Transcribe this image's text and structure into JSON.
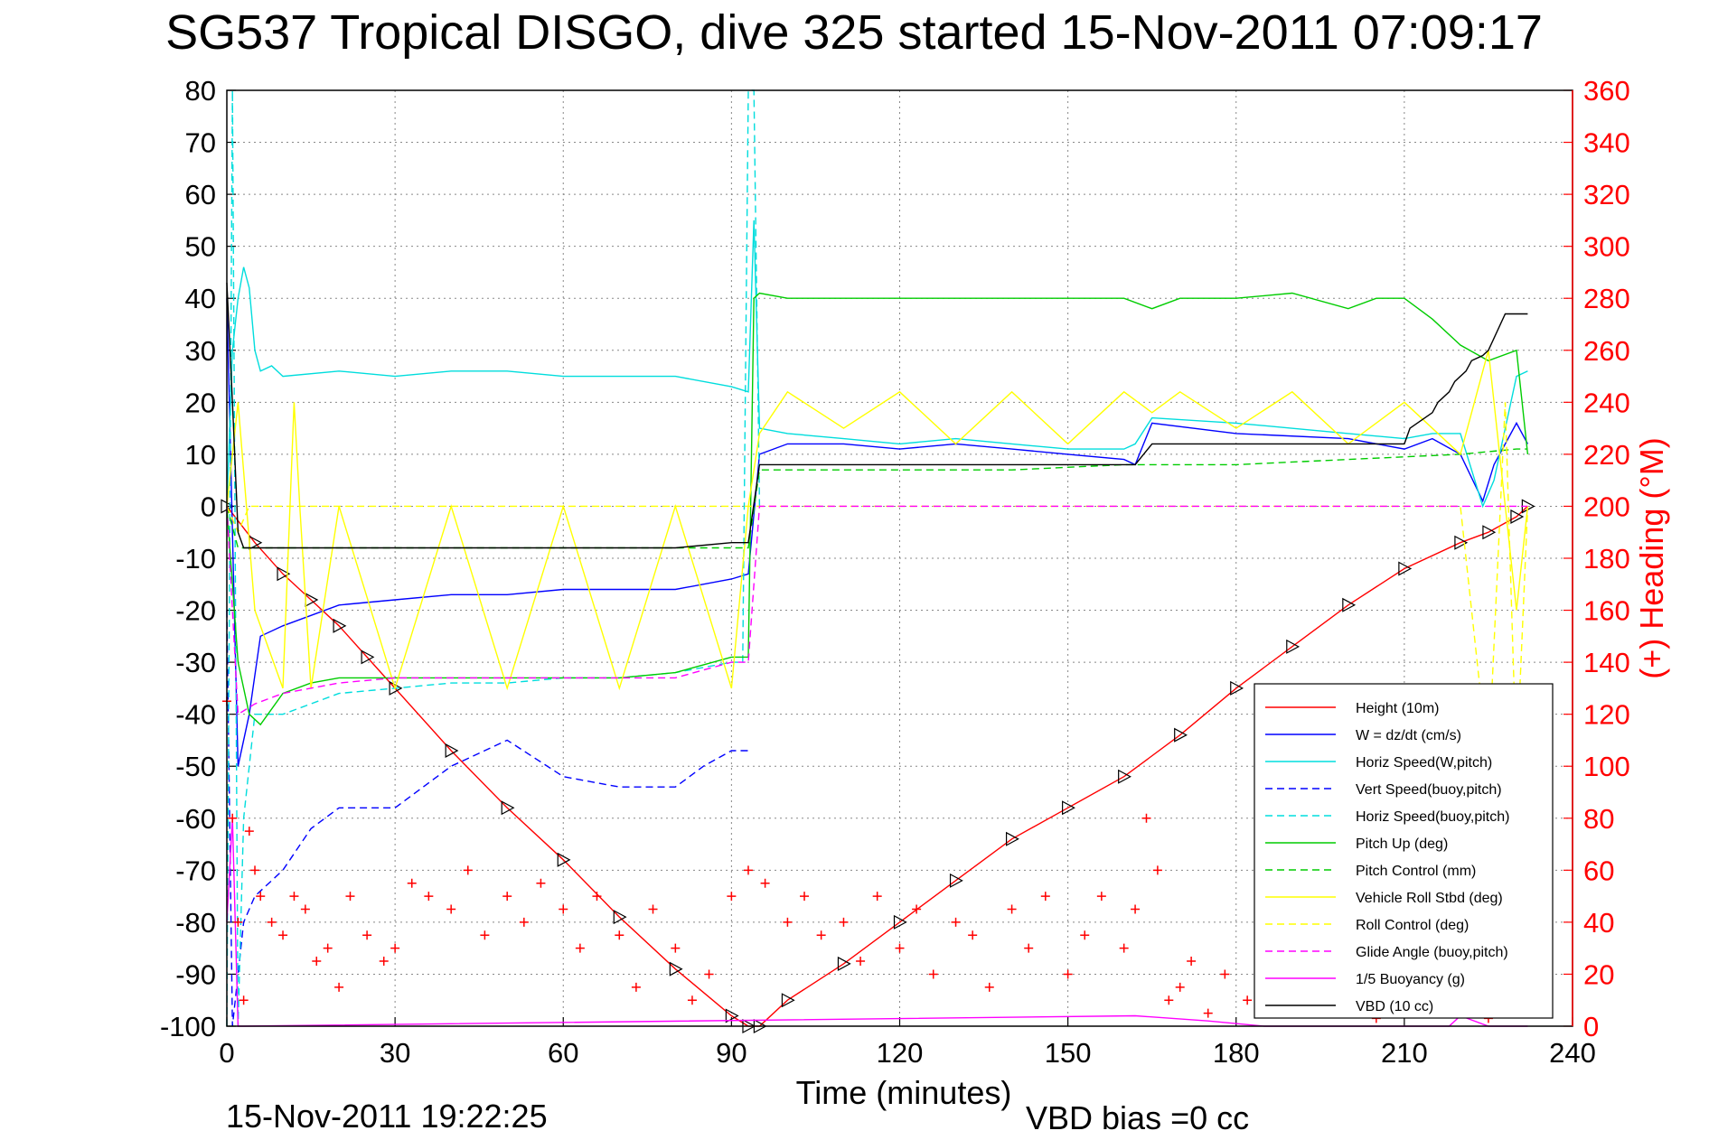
{
  "chart_data": {
    "type": "line",
    "title": "SG537 Tropical DISGO, dive 325 started 15-Nov-2011 07:09:17",
    "xlabel": "Time (minutes)",
    "ylabel": "",
    "y2label": "(+) Heading (°M)",
    "footer_left": "15-Nov-2011 19:22:25",
    "footer_right": "VBD bias =0 cc",
    "xlim": [
      0,
      240
    ],
    "ylim": [
      -100,
      80
    ],
    "y2lim": [
      0,
      360
    ],
    "grid": true,
    "legend_position": "bottom-right",
    "x_ticks": [
      "0",
      "30",
      "60",
      "90",
      "120",
      "150",
      "180",
      "210",
      "240"
    ],
    "y_ticks": [
      "80",
      "70",
      "60",
      "50",
      "40",
      "30",
      "20",
      "10",
      "0",
      "-10",
      "-20",
      "-30",
      "-40",
      "-50",
      "-60",
      "-70",
      "-80",
      "-90",
      "-100"
    ],
    "y2_ticks": [
      "360",
      "340",
      "320",
      "300",
      "280",
      "260",
      "240",
      "220",
      "200",
      "180",
      "160",
      "140",
      "120",
      "100",
      "80",
      "60",
      "40",
      "20",
      "0"
    ],
    "series": [
      {
        "name": "Height (10m)",
        "color": "#ff0000",
        "style": "solid",
        "marker": "triangle",
        "x": [
          0,
          5,
          10,
          15,
          20,
          25,
          30,
          40,
          50,
          60,
          70,
          80,
          90,
          93,
          95,
          100,
          110,
          120,
          130,
          140,
          150,
          160,
          170,
          180,
          190,
          200,
          210,
          220,
          225,
          230,
          232
        ],
        "y": [
          0,
          -7,
          -13,
          -18,
          -23,
          -29,
          -35,
          -47,
          -58,
          -68,
          -79,
          -89,
          -98,
          -100,
          -100,
          -95,
          -88,
          -80,
          -72,
          -64,
          -58,
          -52,
          -44,
          -35,
          -27,
          -19,
          -12,
          -7,
          -5,
          -2,
          0
        ]
      },
      {
        "name": "W = dz/dt (cm/s)",
        "color": "#0000ff",
        "style": "solid",
        "x": [
          0,
          2,
          4,
          6,
          10,
          20,
          30,
          40,
          50,
          60,
          70,
          80,
          90,
          93,
          95,
          100,
          110,
          120,
          130,
          140,
          150,
          160,
          162,
          165,
          180,
          200,
          210,
          215,
          220,
          224,
          226,
          230,
          232
        ],
        "y": [
          40,
          -50,
          -40,
          -25,
          -23,
          -19,
          -18,
          -17,
          -17,
          -16,
          -16,
          -16,
          -14,
          -13,
          10,
          12,
          12,
          11,
          12,
          11,
          10,
          9,
          8,
          16,
          14,
          13,
          11,
          13,
          10,
          1,
          8,
          16,
          12
        ]
      },
      {
        "name": "Horiz Speed(W,pitch)",
        "color": "#00dddd",
        "style": "solid",
        "x": [
          0,
          1,
          2,
          3,
          4,
          5,
          6,
          8,
          10,
          20,
          30,
          40,
          50,
          60,
          70,
          80,
          90,
          93,
          94,
          95,
          100,
          110,
          120,
          130,
          140,
          150,
          160,
          162,
          165,
          180,
          200,
          210,
          215,
          220,
          224,
          226,
          230,
          232
        ],
        "y": [
          0,
          30,
          40,
          46,
          42,
          30,
          26,
          27,
          25,
          26,
          25,
          26,
          26,
          25,
          25,
          25,
          23,
          22,
          55,
          15,
          14,
          13,
          12,
          13,
          12,
          11,
          11,
          12,
          17,
          16,
          14,
          13,
          14,
          14,
          0,
          5,
          25,
          26
        ]
      },
      {
        "name": "Vert Speed(buoy,pitch)",
        "color": "#0000ff",
        "style": "dashed",
        "x": [
          0,
          1,
          3,
          5,
          10,
          15,
          20,
          30,
          40,
          50,
          60,
          70,
          80,
          85,
          90,
          93
        ],
        "y": [
          -20,
          -100,
          -80,
          -75,
          -70,
          -62,
          -58,
          -58,
          -50,
          -45,
          -52,
          -54,
          -54,
          -50,
          -47,
          -47
        ]
      },
      {
        "name": "Horiz Speed(buoy,pitch)",
        "color": "#00dddd",
        "style": "dashed",
        "x": [
          0,
          1,
          2,
          3,
          5,
          10,
          20,
          30,
          40,
          50,
          60,
          70,
          80,
          90,
          92,
          93,
          94,
          95
        ],
        "y": [
          -100,
          80,
          -100,
          -60,
          -40,
          -40,
          -36,
          -35,
          -34,
          -34,
          -33,
          -33,
          -32,
          -30,
          -30,
          80,
          80,
          0
        ]
      },
      {
        "name": "Pitch Up (deg)",
        "color": "#00cc00",
        "style": "solid",
        "x": [
          0,
          2,
          4,
          6,
          10,
          15,
          20,
          30,
          40,
          50,
          60,
          70,
          80,
          90,
          93,
          94,
          95,
          100,
          110,
          120,
          130,
          140,
          150,
          160,
          165,
          170,
          180,
          190,
          200,
          205,
          210,
          215,
          220,
          225,
          230,
          232
        ],
        "y": [
          0,
          -30,
          -40,
          -42,
          -36,
          -34,
          -33,
          -33,
          -33,
          -33,
          -33,
          -33,
          -32,
          -29,
          -29,
          40,
          41,
          40,
          40,
          40,
          40,
          40,
          40,
          40,
          38,
          40,
          40,
          41,
          38,
          40,
          40,
          36,
          31,
          28,
          30,
          10
        ]
      },
      {
        "name": "Pitch Control (mm)",
        "color": "#00cc00",
        "style": "dashed",
        "x": [
          0,
          2,
          5,
          10,
          20,
          30,
          40,
          50,
          60,
          70,
          80,
          90,
          93,
          95,
          100,
          120,
          140,
          160,
          180,
          200,
          220,
          230,
          232
        ],
        "y": [
          0,
          -8,
          -8,
          -8,
          -8,
          -8,
          -8,
          -8,
          -8,
          -8,
          -8,
          -8,
          -8,
          7,
          7,
          7,
          7,
          8,
          8,
          9,
          10,
          11,
          11
        ]
      },
      {
        "name": "Vehicle Roll Stbd (deg)",
        "color": "#ffff00",
        "style": "solid",
        "x": [
          0,
          2,
          5,
          10,
          12,
          13,
          15,
          20,
          30,
          40,
          50,
          60,
          70,
          80,
          90,
          93,
          95,
          100,
          110,
          120,
          130,
          140,
          150,
          160,
          165,
          170,
          180,
          190,
          200,
          210,
          220,
          225,
          230,
          232
        ],
        "y": [
          0,
          20,
          -20,
          -35,
          20,
          0,
          -35,
          0,
          -35,
          0,
          -35,
          0,
          -35,
          0,
          -35,
          0,
          14,
          22,
          15,
          22,
          12,
          22,
          12,
          22,
          18,
          22,
          15,
          22,
          12,
          20,
          10,
          30,
          -20,
          0
        ]
      },
      {
        "name": "Roll Control (deg)",
        "color": "#ffff00",
        "style": "dashed",
        "x": [
          0,
          2,
          4,
          10,
          20,
          30,
          40,
          50,
          60,
          70,
          80,
          90,
          93,
          95,
          100,
          120,
          140,
          160,
          180,
          200,
          210,
          220,
          225,
          228,
          230,
          232
        ],
        "y": [
          0,
          -5,
          0,
          0,
          0,
          0,
          0,
          0,
          0,
          0,
          0,
          0,
          0,
          0,
          0,
          0,
          0,
          0,
          0,
          0,
          0,
          0,
          -50,
          20,
          -50,
          0
        ]
      },
      {
        "name": "Glide Angle (buoy,pitch)",
        "color": "#ff00ff",
        "style": "dashed",
        "x": [
          0,
          2,
          5,
          10,
          20,
          30,
          40,
          50,
          60,
          70,
          80,
          90,
          93,
          95,
          100,
          120,
          140,
          160,
          180,
          200,
          220,
          230,
          232
        ],
        "y": [
          0,
          -40,
          -38,
          -36,
          -34,
          -33,
          -33,
          -33,
          -33,
          -33,
          -33,
          -30,
          -30,
          0,
          0,
          0,
          0,
          0,
          0,
          0,
          0,
          0,
          0
        ]
      },
      {
        "name": "1/5 Buoyancy (g)",
        "color": "#ff00ff",
        "style": "solid",
        "x": [
          0,
          1,
          2,
          3,
          162,
          175,
          185,
          190,
          210,
          218,
          220,
          225,
          230,
          232
        ],
        "y": [
          -80,
          -60,
          -100,
          -100,
          -98,
          -99,
          -100,
          -100,
          -100,
          -100,
          -98,
          -100,
          -100,
          -100
        ]
      },
      {
        "name": "VBD (10 cc)",
        "color": "#000000",
        "style": "solid",
        "x": [
          0,
          1,
          2,
          3,
          5,
          10,
          20,
          30,
          40,
          50,
          60,
          70,
          80,
          90,
          93,
          95,
          100,
          120,
          140,
          160,
          162,
          165,
          180,
          200,
          210,
          211,
          215,
          216,
          218,
          219,
          221,
          222,
          224,
          225,
          228,
          232
        ],
        "y": [
          43,
          20,
          -5,
          -8,
          -8,
          -8,
          -8,
          -8,
          -8,
          -8,
          -8,
          -8,
          -8,
          -7,
          -7,
          8,
          8,
          8,
          8,
          8,
          8,
          12,
          12,
          12,
          12,
          15,
          18,
          20,
          22,
          24,
          26,
          28,
          29,
          30,
          37,
          37
        ]
      },
      {
        "name": "Heading",
        "color": "#ff0000",
        "style": "markers",
        "marker": "plus",
        "axis": "right",
        "x": [
          0,
          1,
          2,
          3,
          4,
          5,
          6,
          8,
          10,
          12,
          14,
          16,
          18,
          20,
          22,
          25,
          28,
          30,
          33,
          36,
          40,
          43,
          46,
          50,
          53,
          56,
          60,
          63,
          66,
          70,
          73,
          76,
          80,
          83,
          86,
          90,
          93,
          96,
          100,
          103,
          106,
          110,
          113,
          116,
          120,
          123,
          126,
          130,
          133,
          136,
          140,
          143,
          146,
          150,
          153,
          156,
          160,
          162,
          164,
          166,
          168,
          170,
          172,
          175,
          178,
          182,
          185,
          188,
          190,
          192,
          195,
          198,
          200,
          205,
          208,
          210,
          212,
          215,
          218,
          220,
          222,
          225,
          228,
          230
        ],
        "y": [
          125,
          80,
          40,
          10,
          75,
          60,
          50,
          40,
          35,
          50,
          45,
          25,
          30,
          15,
          50,
          35,
          25,
          30,
          55,
          50,
          45,
          60,
          35,
          50,
          40,
          55,
          45,
          30,
          50,
          35,
          15,
          45,
          30,
          10,
          20,
          50,
          60,
          55,
          40,
          50,
          35,
          40,
          25,
          50,
          30,
          45,
          20,
          40,
          35,
          15,
          45,
          30,
          50,
          20,
          35,
          50,
          30,
          45,
          80,
          60,
          10,
          15,
          25,
          5,
          20,
          10,
          15,
          5,
          25,
          15,
          10,
          5,
          10,
          3,
          8,
          10,
          5,
          15,
          5,
          8,
          12,
          3,
          6,
          5
        ]
      }
    ]
  }
}
